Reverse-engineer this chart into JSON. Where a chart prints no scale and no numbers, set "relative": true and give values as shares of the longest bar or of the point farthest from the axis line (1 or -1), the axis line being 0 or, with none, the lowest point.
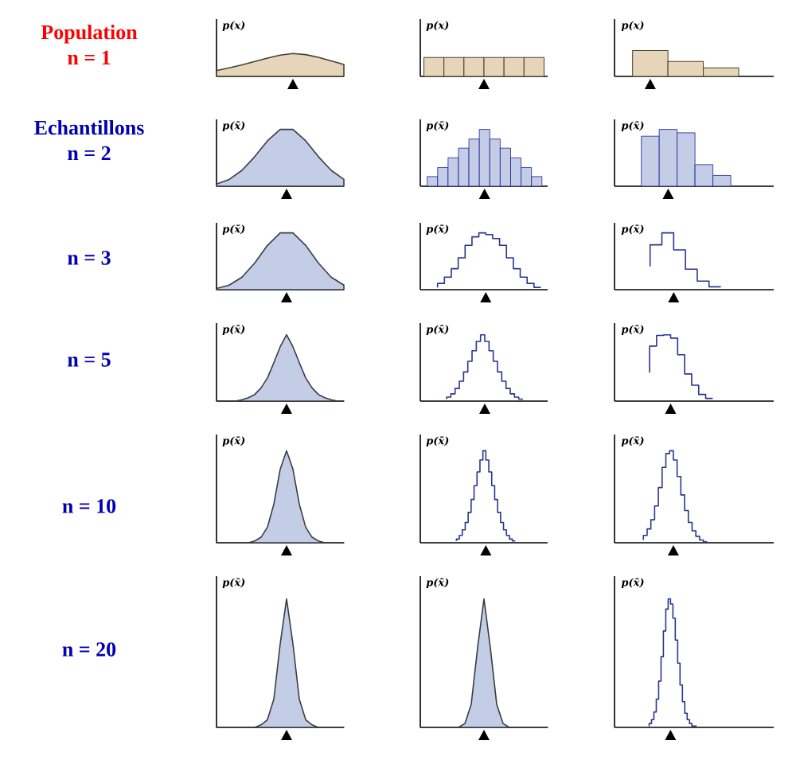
{
  "chart_data": [
    {
      "type": "area",
      "categories": [
        null,
        null,
        null,
        null,
        null,
        null,
        null,
        null,
        null,
        null,
        null
      ],
      "values": [
        0.25,
        0.37,
        0.5,
        0.65,
        0.8,
        0.93,
        1,
        0.95,
        0.83,
        0.68,
        0.52
      ],
      "color": "#e6d5b8",
      "relative": true,
      "ylabel": "p(x)",
      "annotations": [
        "Population",
        "n = 1"
      ]
    },
    {
      "type": "bar",
      "categories": [
        null,
        null,
        null,
        null,
        null,
        null
      ],
      "values": [
        1,
        1,
        1,
        1,
        1,
        1
      ],
      "color": "#e6d5b8",
      "relative": true,
      "ylabel": "p(x)"
    },
    {
      "type": "bar",
      "categories": [
        null,
        null,
        null
      ],
      "values": [
        1,
        0.58,
        0.33
      ],
      "color": "#e6d5b8",
      "relative": true,
      "ylabel": "p(x)"
    },
    {
      "type": "area",
      "categories": [
        null,
        null,
        null,
        null,
        null,
        null,
        null,
        null,
        null,
        null,
        null
      ],
      "values": [
        0.04,
        0.12,
        0.28,
        0.52,
        0.8,
        1,
        1,
        0.8,
        0.52,
        0.28,
        0.12
      ],
      "color": "#c3cde6",
      "relative": true,
      "ylabel": "p(x̄)",
      "annotations": [
        "Echantillons",
        "n = 2"
      ]
    },
    {
      "type": "bar",
      "categories": [
        null,
        null,
        null,
        null,
        null,
        null,
        null,
        null,
        null,
        null,
        null
      ],
      "values": [
        0.17,
        0.33,
        0.5,
        0.67,
        0.83,
        1,
        0.83,
        0.67,
        0.5,
        0.33,
        0.17
      ],
      "color": "#c3cde6",
      "relative": true,
      "ylabel": "p(x̄)"
    },
    {
      "type": "bar",
      "categories": [
        null,
        null,
        null,
        null,
        null
      ],
      "values": [
        0.88,
        1,
        0.94,
        0.38,
        0.19
      ],
      "color": "#c3cde6",
      "relative": true,
      "ylabel": "p(x̄)"
    },
    {
      "type": "area",
      "categories": [
        null,
        null,
        null,
        null,
        null,
        null,
        null,
        null,
        null,
        null,
        null
      ],
      "values": [
        0.02,
        0.08,
        0.22,
        0.47,
        0.78,
        1,
        1,
        0.78,
        0.47,
        0.22,
        0.08
      ],
      "color": "#c3cde6",
      "relative": true,
      "ylabel": "p(x̄)",
      "annotations": [
        "n = 3"
      ]
    },
    {
      "type": "step",
      "categories": [
        null,
        null,
        null,
        null,
        null,
        null,
        null,
        null,
        null,
        null,
        null,
        null,
        null,
        null,
        null,
        null
      ],
      "values": [
        0.04,
        0.11,
        0.22,
        0.37,
        0.56,
        0.78,
        0.93,
        1,
        0.97,
        0.9,
        0.78,
        0.56,
        0.37,
        0.22,
        0.11,
        0.04
      ],
      "color": "#2b3590",
      "relative": true,
      "ylabel": "p(x̄)"
    },
    {
      "type": "step",
      "categories": [
        null,
        null,
        null,
        null,
        null,
        null,
        null
      ],
      "values": [
        0.41,
        0.79,
        1,
        0.7,
        0.36,
        0.15,
        0.05
      ],
      "color": "#2b3590",
      "relative": true,
      "ylabel": "p(x̄)"
    },
    {
      "type": "area",
      "categories": [
        null,
        null,
        null,
        null,
        null,
        null,
        null,
        null,
        null,
        null,
        null,
        null,
        null,
        null,
        null,
        null,
        null,
        null,
        null,
        null,
        null
      ],
      "values": [
        0,
        0,
        0,
        0,
        0.02,
        0.05,
        0.1,
        0.2,
        0.35,
        0.58,
        0.82,
        1,
        0.82,
        0.58,
        0.35,
        0.2,
        0.1,
        0.05,
        0.02,
        0,
        0
      ],
      "color": "#c3cde6",
      "relative": true,
      "ylabel": "p(x̄)",
      "annotations": [
        "n = 5"
      ]
    },
    {
      "type": "step",
      "categories": [
        null,
        null,
        null,
        null,
        null,
        null,
        null,
        null,
        null,
        null,
        null,
        null,
        null,
        null,
        null,
        null,
        null,
        null,
        null
      ],
      "values": [
        0.03,
        0.06,
        0.11,
        0.19,
        0.3,
        0.44,
        0.6,
        0.76,
        0.9,
        1,
        0.9,
        0.76,
        0.6,
        0.44,
        0.3,
        0.19,
        0.11,
        0.06,
        0.03
      ],
      "color": "#2b3590",
      "relative": true,
      "ylabel": "p(x̄)"
    },
    {
      "type": "step",
      "categories": [
        null,
        null,
        null,
        null,
        null,
        null,
        null,
        null,
        null,
        null
      ],
      "values": [
        0.43,
        0.83,
        0.99,
        1,
        0.95,
        0.7,
        0.41,
        0.24,
        0.1,
        0.04
      ],
      "color": "#2b3590",
      "relative": true,
      "ylabel": "p(x̄)"
    },
    {
      "type": "area",
      "categories": [
        null,
        null,
        null,
        null,
        null,
        null,
        null,
        null,
        null,
        null,
        null,
        null,
        null,
        null,
        null,
        null,
        null,
        null,
        null,
        null,
        null
      ],
      "values": [
        0,
        0,
        0,
        0,
        0,
        0,
        0.02,
        0.06,
        0.17,
        0.42,
        0.8,
        1,
        0.8,
        0.42,
        0.17,
        0.06,
        0.02,
        0,
        0,
        0,
        0
      ],
      "color": "#c3cde6",
      "relative": true,
      "ylabel": "p(x̄)",
      "annotations": [
        "n = 10"
      ]
    },
    {
      "type": "step",
      "categories": [
        null,
        null,
        null,
        null,
        null,
        null,
        null,
        null,
        null,
        null,
        null,
        null,
        null,
        null,
        null,
        null,
        null,
        null,
        null,
        null,
        null
      ],
      "values": [
        0.02,
        0.04,
        0.08,
        0.14,
        0.22,
        0.33,
        0.47,
        0.62,
        0.77,
        0.9,
        1,
        0.9,
        0.77,
        0.62,
        0.47,
        0.33,
        0.22,
        0.14,
        0.08,
        0.04,
        0.02
      ],
      "color": "#2b3590",
      "relative": true,
      "ylabel": "p(x̄)"
    },
    {
      "type": "step",
      "categories": [
        null,
        null,
        null,
        null,
        null,
        null,
        null,
        null,
        null,
        null,
        null,
        null,
        null,
        null,
        null,
        null,
        null,
        null
      ],
      "values": [
        0.03,
        0.08,
        0.15,
        0.25,
        0.4,
        0.6,
        0.82,
        0.97,
        1,
        0.9,
        0.72,
        0.52,
        0.35,
        0.22,
        0.13,
        0.07,
        0.03,
        0.01
      ],
      "color": "#2b3590",
      "relative": true,
      "ylabel": "p(x̄)"
    },
    {
      "type": "area",
      "categories": [
        null,
        null,
        null,
        null,
        null,
        null,
        null,
        null,
        null,
        null,
        null,
        null,
        null,
        null,
        null,
        null,
        null,
        null,
        null,
        null,
        null
      ],
      "values": [
        0,
        0,
        0,
        0,
        0,
        0,
        0,
        0.02,
        0.06,
        0.22,
        0.65,
        1,
        0.65,
        0.22,
        0.06,
        0.02,
        0,
        0,
        0,
        0,
        0
      ],
      "color": "#c3cde6",
      "relative": true,
      "ylabel": "p(x̄)",
      "annotations": [
        "n = 20"
      ]
    },
    {
      "type": "area",
      "categories": [
        null,
        null,
        null,
        null,
        null,
        null,
        null,
        null,
        null,
        null,
        null,
        null,
        null,
        null,
        null,
        null,
        null,
        null,
        null,
        null,
        null
      ],
      "values": [
        0,
        0,
        0,
        0,
        0,
        0,
        0,
        0.03,
        0.18,
        0.62,
        1,
        0.62,
        0.18,
        0.03,
        0,
        0,
        0,
        0,
        0,
        0,
        0
      ],
      "color": "#c3cde6",
      "relative": true,
      "ylabel": "p(x̄)"
    },
    {
      "type": "step",
      "categories": [
        null,
        null,
        null,
        null,
        null,
        null,
        null,
        null,
        null,
        null,
        null,
        null,
        null,
        null,
        null,
        null,
        null,
        null,
        null,
        null,
        null
      ],
      "values": [
        0.01,
        0.03,
        0.06,
        0.12,
        0.22,
        0.36,
        0.55,
        0.75,
        0.92,
        1,
        0.96,
        0.85,
        0.68,
        0.5,
        0.33,
        0.2,
        0.11,
        0.06,
        0.03,
        0.01,
        0.01
      ],
      "color": "#2b3590",
      "relative": true,
      "ylabel": "p(x̄)"
    }
  ]
}
